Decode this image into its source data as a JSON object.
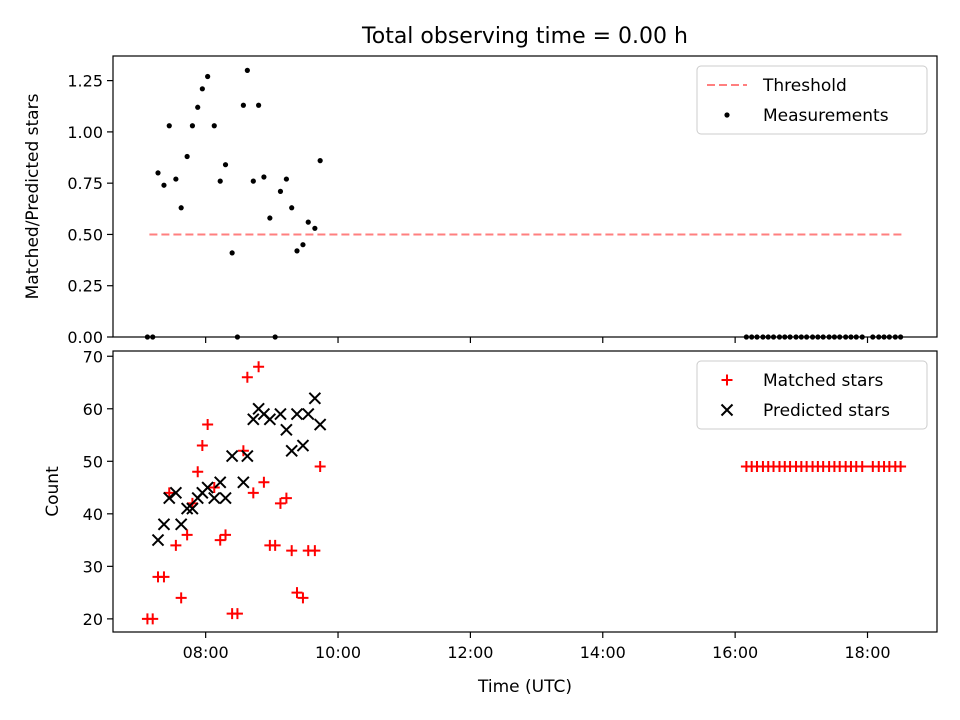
{
  "title": "Total observing time = 0.00 h",
  "chart_data": [
    {
      "type": "scatter",
      "ylabel": "Matched/Predicted stars",
      "xlabel": "",
      "x_unit": "hours UTC (decimal)",
      "xlim": [
        6.6,
        19.05
      ],
      "ylim": [
        0,
        1.37
      ],
      "yticks": [
        0.0,
        0.25,
        0.5,
        0.75,
        1.0,
        1.25
      ],
      "ytick_labels": [
        "0.00",
        "0.25",
        "0.50",
        "0.75",
        "1.00",
        "1.25"
      ],
      "xticks": [
        8,
        10,
        12,
        14,
        16,
        18
      ],
      "xtick_labels": [
        "08:00",
        "10:00",
        "12:00",
        "14:00",
        "16:00",
        "18:00"
      ],
      "show_xtick_labels": false,
      "grid": false,
      "legend_position": "top-right",
      "threshold": {
        "name": "Threshold",
        "y": 0.5,
        "x": [
          7.15,
          18.52
        ],
        "color": "#ff7f7f",
        "style": "dashed"
      },
      "series": [
        {
          "name": "Measurements",
          "color": "#000000",
          "marker": "dot",
          "x": [
            7.12,
            7.2,
            7.28,
            7.37,
            7.45,
            7.55,
            7.63,
            7.72,
            7.8,
            7.88,
            7.95,
            8.03,
            8.13,
            8.22,
            8.3,
            8.4,
            8.48,
            8.57,
            8.63,
            8.72,
            8.8,
            8.88,
            8.97,
            9.05,
            9.13,
            9.22,
            9.3,
            9.38,
            9.47,
            9.55,
            9.65,
            9.73,
            16.17,
            16.25,
            16.33,
            16.42,
            16.5,
            16.58,
            16.67,
            16.75,
            16.83,
            16.92,
            17.0,
            17.08,
            17.17,
            17.25,
            17.33,
            17.42,
            17.5,
            17.58,
            17.67,
            17.75,
            17.83,
            17.92,
            18.08,
            18.17,
            18.25,
            18.33,
            18.42,
            18.5
          ],
          "y": [
            0.0,
            0.0,
            0.8,
            0.74,
            1.03,
            0.77,
            0.63,
            0.88,
            1.03,
            1.12,
            1.21,
            1.27,
            1.03,
            0.76,
            0.84,
            0.41,
            0.0,
            1.13,
            1.3,
            0.76,
            1.13,
            0.78,
            0.58,
            0.0,
            0.71,
            0.77,
            0.63,
            0.42,
            0.45,
            0.56,
            0.53,
            0.86,
            0.0,
            0.0,
            0.0,
            0.0,
            0.0,
            0.0,
            0.0,
            0.0,
            0.0,
            0.0,
            0.0,
            0.0,
            0.0,
            0.0,
            0.0,
            0.0,
            0.0,
            0.0,
            0.0,
            0.0,
            0.0,
            0.0,
            0.0,
            0.0,
            0.0,
            0.0,
            0.0,
            0.0
          ]
        }
      ]
    },
    {
      "type": "scatter",
      "ylabel": "Count",
      "xlabel": "Time (UTC)",
      "x_unit": "hours UTC (decimal)",
      "xlim": [
        6.6,
        19.05
      ],
      "ylim": [
        17.5,
        71
      ],
      "yticks": [
        20,
        30,
        40,
        50,
        60,
        70
      ],
      "ytick_labels": [
        "20",
        "30",
        "40",
        "50",
        "60",
        "70"
      ],
      "xticks": [
        8,
        10,
        12,
        14,
        16,
        18
      ],
      "xtick_labels": [
        "08:00",
        "10:00",
        "12:00",
        "14:00",
        "16:00",
        "18:00"
      ],
      "show_xtick_labels": true,
      "grid": false,
      "legend_position": "top-right",
      "series": [
        {
          "name": "Matched stars",
          "color": "#ff0000",
          "marker": "plus",
          "x": [
            7.12,
            7.2,
            7.28,
            7.37,
            7.45,
            7.55,
            7.63,
            7.72,
            7.8,
            7.88,
            7.95,
            8.03,
            8.13,
            8.22,
            8.3,
            8.4,
            8.48,
            8.57,
            8.63,
            8.72,
            8.8,
            8.88,
            8.97,
            9.05,
            9.13,
            9.22,
            9.3,
            9.38,
            9.47,
            9.55,
            9.65,
            9.73,
            16.17,
            16.25,
            16.33,
            16.42,
            16.5,
            16.58,
            16.67,
            16.75,
            16.83,
            16.92,
            17.0,
            17.08,
            17.17,
            17.25,
            17.33,
            17.42,
            17.5,
            17.58,
            17.67,
            17.75,
            17.83,
            17.92,
            18.08,
            18.17,
            18.25,
            18.33,
            18.42,
            18.5
          ],
          "y": [
            20,
            20,
            28,
            28,
            44,
            34,
            24,
            36,
            42,
            48,
            53,
            57,
            45,
            35,
            36,
            21,
            21,
            52,
            66,
            44,
            68,
            46,
            34,
            34,
            42,
            43,
            33,
            25,
            24,
            33,
            33,
            49,
            49,
            49,
            49,
            49,
            49,
            49,
            49,
            49,
            49,
            49,
            49,
            49,
            49,
            49,
            49,
            49,
            49,
            49,
            49,
            49,
            49,
            49,
            49,
            49,
            49,
            49,
            49,
            49
          ]
        },
        {
          "name": "Predicted stars",
          "color": "#000000",
          "marker": "x",
          "x": [
            7.28,
            7.37,
            7.45,
            7.55,
            7.63,
            7.72,
            7.8,
            7.88,
            7.95,
            8.03,
            8.13,
            8.22,
            8.3,
            8.4,
            8.57,
            8.63,
            8.72,
            8.8,
            8.88,
            8.97,
            9.13,
            9.22,
            9.3,
            9.38,
            9.47,
            9.55,
            9.65,
            9.73
          ],
          "y": [
            35,
            38,
            43,
            44,
            38,
            41,
            41,
            43,
            44,
            45,
            43,
            46,
            43,
            51,
            46,
            51,
            58,
            60,
            59,
            58,
            59,
            56,
            52,
            59,
            53,
            59,
            62,
            57
          ]
        }
      ]
    }
  ]
}
